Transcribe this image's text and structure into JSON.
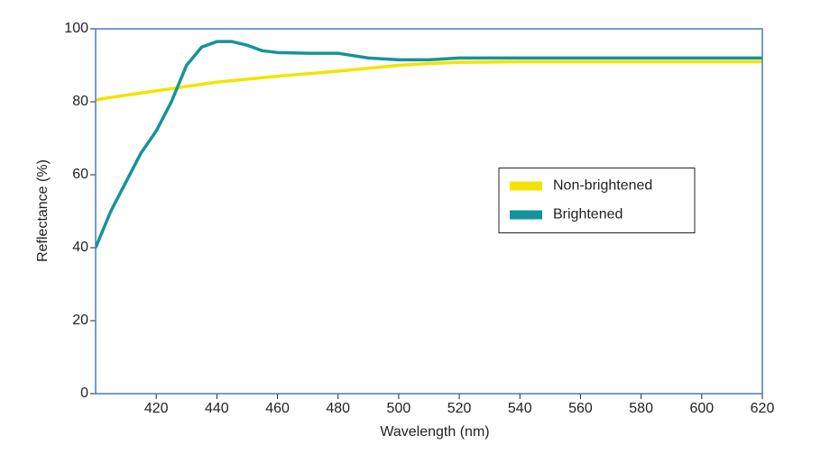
{
  "chart_data": {
    "type": "line",
    "x_label": "Wavelength (nm)",
    "y_label": "Reflectance (%)",
    "x": [
      400,
      405,
      410,
      415,
      420,
      425,
      430,
      435,
      440,
      445,
      450,
      455,
      460,
      470,
      480,
      490,
      500,
      510,
      520,
      540,
      560,
      580,
      600,
      620
    ],
    "series": [
      {
        "name": "Non-brightened",
        "color": "#f2e400",
        "values": [
          80.5,
          81.2,
          81.8,
          82.4,
          83,
          83.6,
          84.2,
          84.8,
          85.4,
          85.8,
          86.2,
          86.6,
          87,
          87.7,
          88.4,
          89.2,
          90,
          90.5,
          90.8,
          91,
          91,
          91,
          91,
          91
        ]
      },
      {
        "name": "Brightened",
        "color": "#15939b",
        "values": [
          40,
          50,
          58,
          66,
          72,
          80,
          90,
          95,
          96.5,
          96.5,
          95.5,
          94,
          93.5,
          93.3,
          93.3,
          92,
          91.5,
          91.5,
          92,
          92,
          92,
          92,
          92,
          92
        ]
      }
    ],
    "xlim": [
      400,
      620
    ],
    "xticks": [
      420,
      440,
      460,
      480,
      500,
      520,
      540,
      560,
      580,
      600,
      620
    ],
    "ylim": [
      0,
      100
    ],
    "yticks": [
      0,
      20,
      40,
      60,
      80,
      100
    ],
    "legend": "center right",
    "frame_color": "#4a7ab8"
  }
}
